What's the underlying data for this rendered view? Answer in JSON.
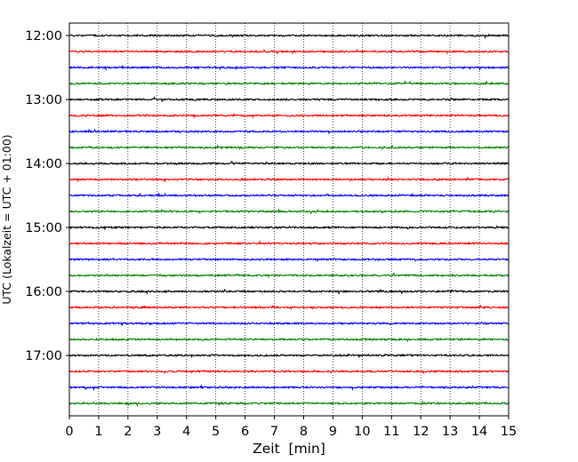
{
  "chart_data": {
    "type": "line",
    "title": "",
    "xlabel": "Zeit  [min]",
    "ylabel": "UTC (Lokalzeit = UTC + 01:00)",
    "xlim": [
      0,
      15
    ],
    "x_ticks": [
      "0",
      "1",
      "2",
      "3",
      "4",
      "5",
      "6",
      "7",
      "8",
      "9",
      "10",
      "11",
      "12",
      "13",
      "14",
      "15"
    ],
    "y_tick_labels": [
      "12:00",
      "13:00",
      "14:00",
      "15:00",
      "16:00",
      "17:00"
    ],
    "grid": "vertical dotted",
    "minutes_per_trace": 15,
    "trace_colors": [
      "#000000",
      "#ff0000",
      "#0000ff",
      "#008000"
    ],
    "traces": [
      {
        "start": "12:00",
        "color": "#000000"
      },
      {
        "start": "12:15",
        "color": "#ff0000"
      },
      {
        "start": "12:30",
        "color": "#0000ff"
      },
      {
        "start": "12:45",
        "color": "#008000"
      },
      {
        "start": "13:00",
        "color": "#000000"
      },
      {
        "start": "13:15",
        "color": "#ff0000"
      },
      {
        "start": "13:30",
        "color": "#0000ff"
      },
      {
        "start": "13:45",
        "color": "#008000"
      },
      {
        "start": "14:00",
        "color": "#000000"
      },
      {
        "start": "14:15",
        "color": "#ff0000"
      },
      {
        "start": "14:30",
        "color": "#0000ff"
      },
      {
        "start": "14:45",
        "color": "#008000"
      },
      {
        "start": "15:00",
        "color": "#000000"
      },
      {
        "start": "15:15",
        "color": "#ff0000"
      },
      {
        "start": "15:30",
        "color": "#0000ff"
      },
      {
        "start": "15:45",
        "color": "#008000"
      },
      {
        "start": "16:00",
        "color": "#000000"
      },
      {
        "start": "16:15",
        "color": "#ff0000"
      },
      {
        "start": "16:30",
        "color": "#0000ff"
      },
      {
        "start": "16:45",
        "color": "#008000"
      },
      {
        "start": "17:00",
        "color": "#000000"
      },
      {
        "start": "17:15",
        "color": "#ff0000"
      },
      {
        "start": "17:30",
        "color": "#0000ff"
      },
      {
        "start": "17:45",
        "color": "#008000"
      }
    ]
  }
}
